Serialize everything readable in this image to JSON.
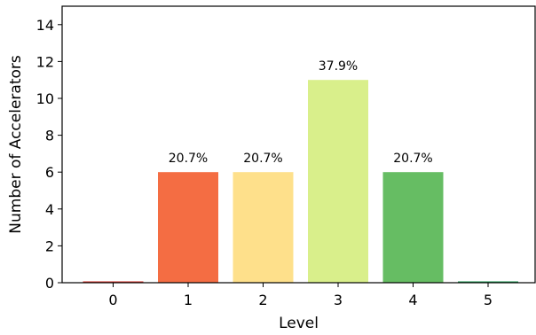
{
  "chart_data": {
    "type": "bar",
    "categories": [
      "0",
      "1",
      "2",
      "3",
      "4",
      "5"
    ],
    "values": [
      0,
      6,
      6,
      11,
      6,
      0
    ],
    "data_labels": [
      "",
      "20.7%",
      "20.7%",
      "37.9%",
      "20.7%",
      ""
    ],
    "colors": [
      "#d73027",
      "#f46d43",
      "#fee08b",
      "#d9ef8b",
      "#66bd63",
      "#1a9850"
    ],
    "xlabel": "Level",
    "ylabel": "Number of Accelerators",
    "ylim": [
      0,
      15
    ],
    "yticks": [
      0,
      2,
      4,
      6,
      8,
      10,
      12,
      14
    ],
    "grid": false,
    "legend": "none"
  }
}
